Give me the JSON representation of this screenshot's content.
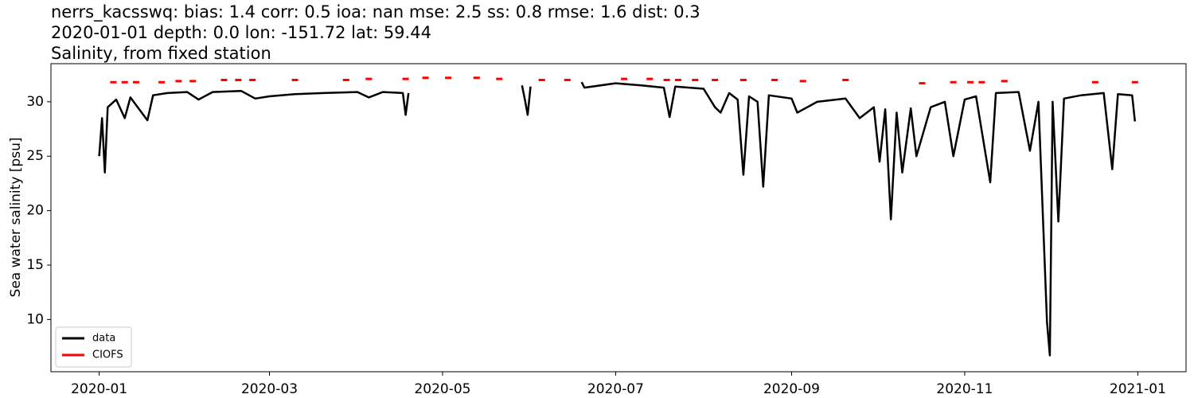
{
  "chart_data": {
    "type": "line",
    "title": "nerrs_kacsswq: bias: 1.4  corr: 0.5  ioa: nan  mse: 2.5  ss: 0.8  rmse: 1.6  dist: 0.3",
    "subtitle": "2020-01-01 depth: 0.0 lon: -151.72 lat: 59.44",
    "subtitle2": "Salinity, from fixed station",
    "ylabel": "Sea water salinity [psu]",
    "xlim": [
      "2019-12-15",
      "2021-01-18"
    ],
    "xticks": [
      {
        "value": "2020-01-01",
        "label": "2020-01"
      },
      {
        "value": "2020-03-01",
        "label": "2020-03"
      },
      {
        "value": "2020-05-01",
        "label": "2020-05"
      },
      {
        "value": "2020-07-01",
        "label": "2020-07"
      },
      {
        "value": "2020-09-01",
        "label": "2020-09"
      },
      {
        "value": "2020-11-01",
        "label": "2020-11"
      },
      {
        "value": "2021-01-01",
        "label": "2021-01"
      }
    ],
    "ylim": [
      5.2,
      33.5
    ],
    "yticks": [
      10,
      15,
      20,
      25,
      30
    ],
    "legend": "lower left",
    "series": [
      {
        "name": "data",
        "color": "#000000",
        "style": "line",
        "x": [
          "2020-01-01",
          "2020-01-02",
          "2020-01-03",
          "2020-01-04",
          "2020-01-07",
          "2020-01-10",
          "2020-01-12",
          "2020-01-18",
          "2020-01-20",
          "2020-01-25",
          "2020-02-01",
          "2020-02-05",
          "2020-02-10",
          "2020-02-20",
          "2020-02-25",
          "2020-03-01",
          "2020-03-10",
          "2020-03-20",
          "2020-04-01",
          "2020-04-05",
          "2020-04-10",
          "2020-04-17",
          "2020-04-18",
          "2020-04-19",
          null,
          "2020-05-29",
          "2020-05-30",
          "2020-05-31",
          "2020-06-01",
          null,
          "2020-06-19",
          "2020-06-20",
          "2020-07-01",
          "2020-07-10",
          "2020-07-18",
          "2020-07-20",
          "2020-07-22",
          "2020-08-01",
          "2020-08-05",
          "2020-08-07",
          "2020-08-10",
          "2020-08-13",
          "2020-08-15",
          "2020-08-17",
          "2020-08-20",
          "2020-08-22",
          "2020-08-24",
          "2020-09-01",
          "2020-09-03",
          "2020-09-10",
          "2020-09-20",
          "2020-09-25",
          "2020-09-30",
          "2020-10-02",
          "2020-10-04",
          "2020-10-06",
          "2020-10-08",
          "2020-10-10",
          "2020-10-13",
          "2020-10-15",
          "2020-10-20",
          "2020-10-25",
          "2020-10-28",
          "2020-11-01",
          "2020-11-05",
          "2020-11-10",
          "2020-11-12",
          "2020-11-20",
          "2020-11-24",
          "2020-11-27",
          "2020-11-30",
          "2020-12-01",
          "2020-12-02",
          "2020-12-04",
          "2020-12-06",
          "2020-12-12",
          "2020-12-20",
          "2020-12-23",
          "2020-12-25",
          "2020-12-30",
          "2020-12-31"
        ],
        "values": [
          25.0,
          28.5,
          23.5,
          29.5,
          30.2,
          28.5,
          30.4,
          28.3,
          30.6,
          30.8,
          30.9,
          30.2,
          30.9,
          31.0,
          30.3,
          30.5,
          30.7,
          30.8,
          30.9,
          30.4,
          30.9,
          30.8,
          28.8,
          30.8,
          null,
          31.5,
          30.2,
          28.8,
          31.4,
          null,
          31.8,
          31.3,
          31.7,
          31.5,
          31.3,
          28.6,
          31.4,
          31.2,
          29.5,
          29.0,
          30.8,
          30.2,
          23.3,
          30.5,
          30.0,
          22.2,
          30.6,
          30.3,
          29.0,
          30.0,
          30.3,
          28.5,
          29.5,
          24.5,
          29.3,
          19.2,
          29.0,
          23.5,
          29.4,
          25.0,
          29.5,
          30.0,
          25.0,
          30.2,
          30.5,
          22.6,
          30.8,
          30.9,
          25.5,
          30.0,
          9.8,
          6.7,
          30.0,
          19.0,
          30.3,
          30.6,
          30.8,
          23.8,
          30.7,
          30.6,
          28.2
        ]
      },
      {
        "name": "CIOFS",
        "color": "#ff0000",
        "style": "dash",
        "x": [
          "2020-01-06",
          "2020-01-10",
          "2020-01-14",
          "2020-01-23",
          "2020-01-29",
          "2020-02-03",
          "2020-02-14",
          "2020-02-19",
          "2020-02-24",
          "2020-03-10",
          "2020-03-28",
          "2020-04-05",
          "2020-04-18",
          "2020-04-25",
          "2020-05-03",
          "2020-05-13",
          "2020-05-21",
          "2020-06-05",
          "2020-06-14",
          "2020-07-04",
          "2020-07-13",
          "2020-07-19",
          "2020-07-23",
          "2020-07-29",
          "2020-08-05",
          "2020-08-15",
          "2020-08-26",
          "2020-09-05",
          "2020-09-20",
          "2020-10-17",
          "2020-10-28",
          "2020-11-03",
          "2020-11-07",
          "2020-11-15",
          "2020-12-17",
          "2020-12-31"
        ],
        "values": [
          31.8,
          31.8,
          31.8,
          31.8,
          31.9,
          31.9,
          32.0,
          32.0,
          32.0,
          32.0,
          32.0,
          32.1,
          32.1,
          32.2,
          32.2,
          32.2,
          32.1,
          32.0,
          32.0,
          32.1,
          32.1,
          32.0,
          32.0,
          32.0,
          32.0,
          32.0,
          32.0,
          31.9,
          32.0,
          31.7,
          31.8,
          31.8,
          31.8,
          31.9,
          31.8,
          31.8
        ]
      }
    ]
  }
}
